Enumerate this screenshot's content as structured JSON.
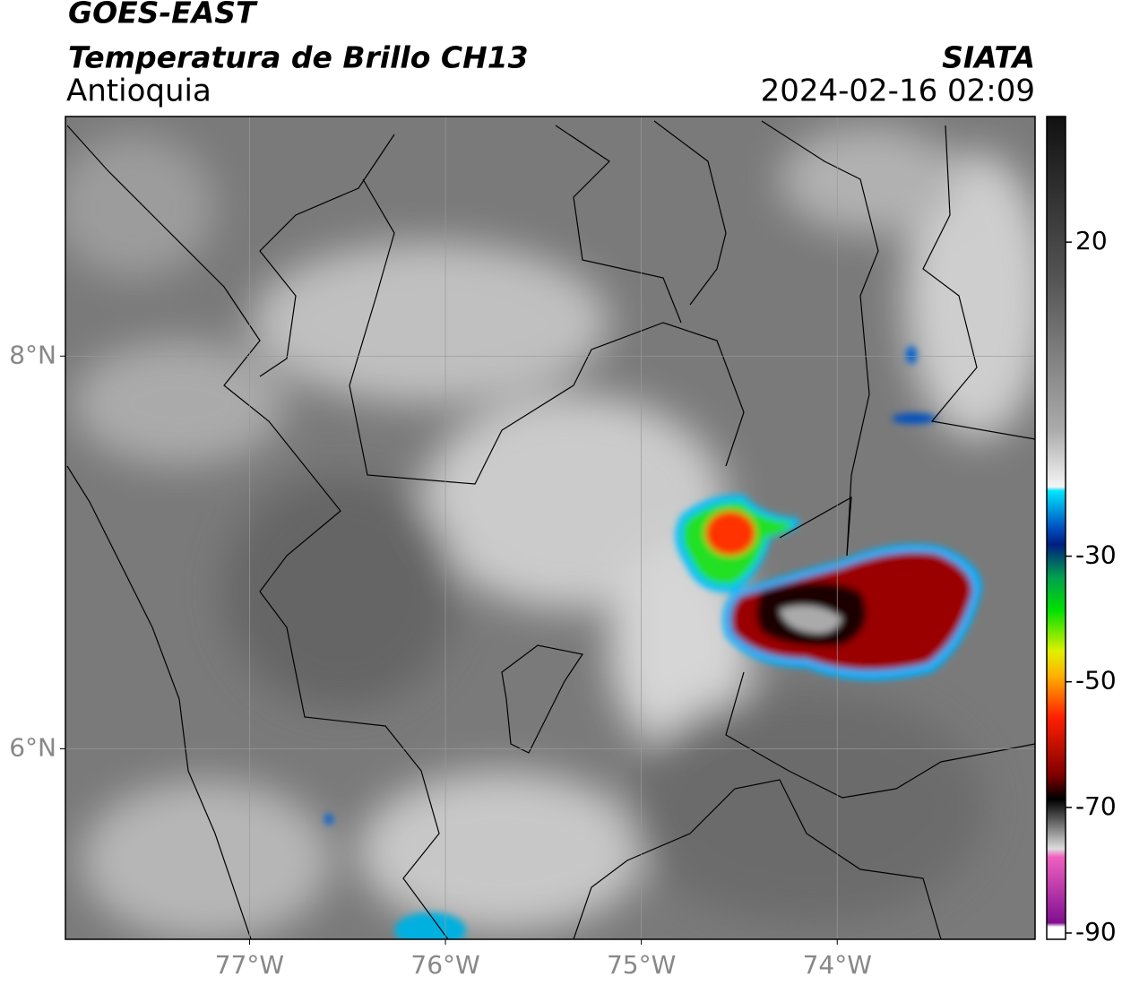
{
  "header": {
    "title": "GOES-EAST",
    "subtitle": "Temperatura de Brillo CH13",
    "region": "Antioquia",
    "source": "SIATA",
    "datetime": "2024-02-16 02:09"
  },
  "map": {
    "xlim": [
      -77.94,
      -72.99
    ],
    "ylim": [
      5.03,
      9.22
    ],
    "xticks": [
      {
        "value": -77,
        "label": "77°W"
      },
      {
        "value": -76,
        "label": "76°W"
      },
      {
        "value": -75,
        "label": "75°W"
      },
      {
        "value": -74,
        "label": "74°W"
      }
    ],
    "yticks": [
      {
        "value": 6,
        "label": "6°N"
      },
      {
        "value": 8,
        "label": "8°N"
      }
    ],
    "grid": true
  },
  "colorbar": {
    "lim": [
      -91,
      40
    ],
    "ticks": [
      20,
      -30,
      -50,
      -70,
      -90
    ]
  }
}
